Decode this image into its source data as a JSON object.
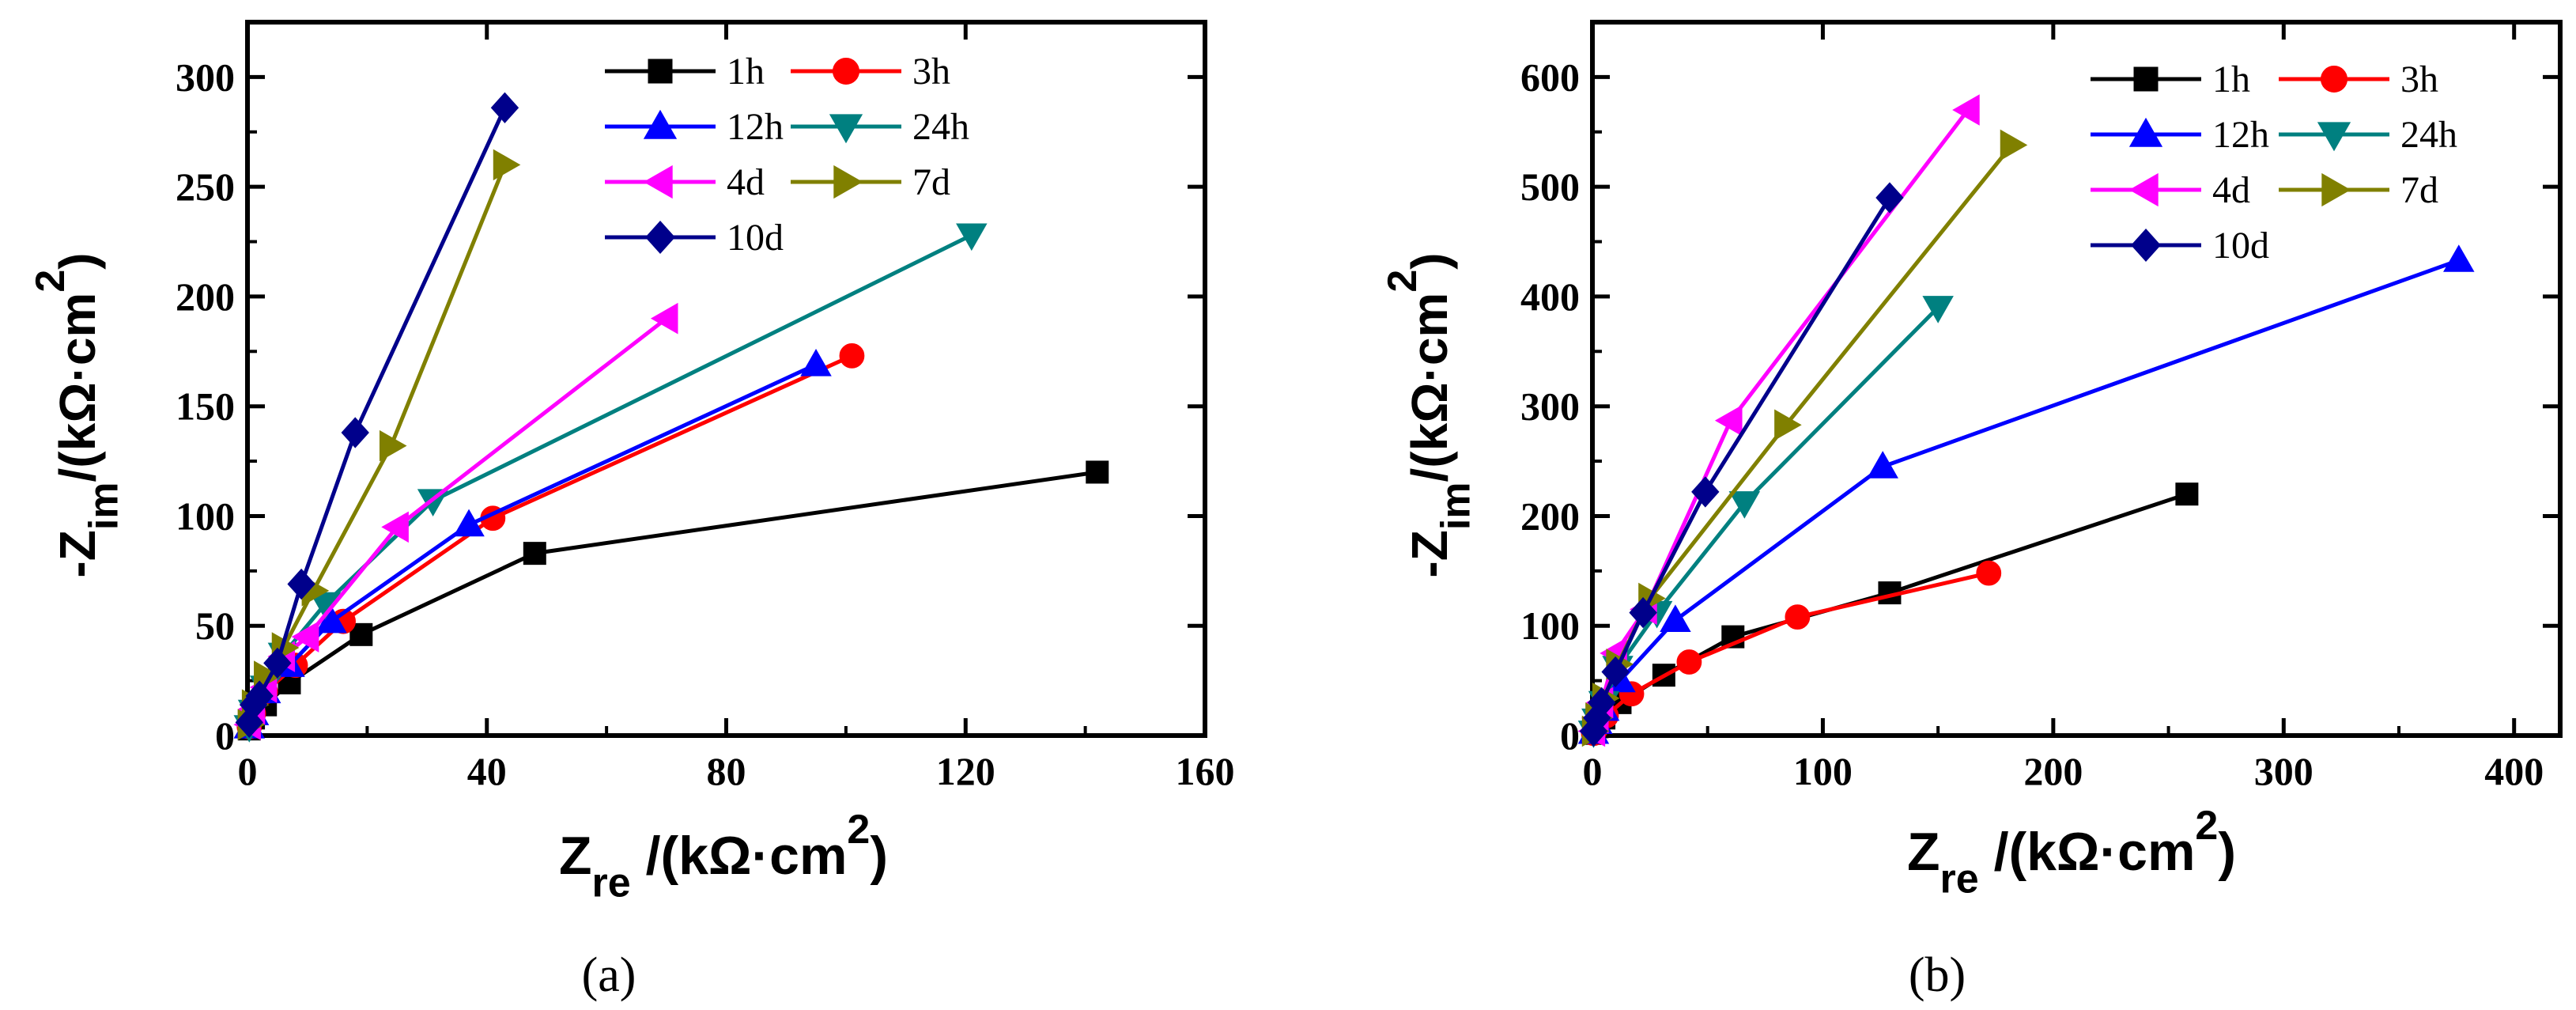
{
  "chart_data": [
    {
      "type": "line",
      "panel_label": "(a)",
      "xlabel": {
        "main": "Z",
        "sub": "re",
        "rest": " /(kΩ",
        "dot": "·",
        "rest2": "cm",
        "sup": "2",
        "close": ")"
      },
      "ylabel": {
        "main": "-Z",
        "sub": "im",
        "rest": "/(kΩ",
        "dot": "·",
        "rest2": "cm",
        "sup": "2",
        "close": ")"
      },
      "xlim": [
        0,
        160
      ],
      "ylim": [
        0,
        325
      ],
      "xticks": [
        0,
        40,
        80,
        120,
        160
      ],
      "yticks": [
        0,
        50,
        100,
        150,
        200,
        250,
        300
      ],
      "series": [
        {
          "name": "1h",
          "color": "#000000",
          "marker": "square",
          "x": [
            0.3,
            1,
            3,
            7,
            19,
            48,
            142
          ],
          "y": [
            3,
            8,
            14,
            24,
            46,
            83,
            120
          ]
        },
        {
          "name": "3h",
          "color": "#ff0000",
          "marker": "circle",
          "x": [
            0.3,
            1,
            3,
            8,
            16,
            41,
            101
          ],
          "y": [
            4,
            10,
            20,
            32,
            52,
            99,
            173
          ]
        },
        {
          "name": "12h",
          "color": "#0000ff",
          "marker": "triangle-up",
          "x": [
            0.3,
            1,
            3,
            7,
            14,
            37,
            95
          ],
          "y": [
            4,
            10,
            20,
            32,
            52,
            96,
            169
          ]
        },
        {
          "name": "24h",
          "color": "#008080",
          "marker": "triangle-down",
          "x": [
            0.3,
            1,
            3,
            6,
            13,
            31,
            121
          ],
          "y": [
            4,
            11,
            22,
            37,
            60,
            107,
            228
          ]
        },
        {
          "name": "4d",
          "color": "#ff00ff",
          "marker": "triangle-left",
          "x": [
            0.3,
            1,
            3,
            6,
            10,
            25,
            70
          ],
          "y": [
            5,
            12,
            22,
            36,
            45,
            95,
            190
          ]
        },
        {
          "name": "7d",
          "color": "#808000",
          "marker": "triangle-right",
          "x": [
            0.3,
            1,
            3,
            6,
            11,
            24,
            43
          ],
          "y": [
            5,
            14,
            27,
            40,
            66,
            132,
            260
          ]
        },
        {
          "name": "10d",
          "color": "#00008b",
          "marker": "diamond",
          "x": [
            0.3,
            1,
            2,
            5,
            9,
            18,
            43
          ],
          "y": [
            6,
            14,
            18,
            33,
            69,
            138,
            286
          ]
        }
      ]
    },
    {
      "type": "line",
      "panel_label": "(b)",
      "xlabel": {
        "main": "Z",
        "sub": "re",
        "rest": " /(kΩ",
        "dot": "·",
        "rest2": "cm",
        "sup": "2",
        "close": ")"
      },
      "ylabel": {
        "main": "-Z",
        "sub": "im",
        "rest": "/(kΩ",
        "dot": "·",
        "rest2": "cm",
        "sup": "2",
        "close": ")"
      },
      "xlim": [
        0,
        420
      ],
      "ylim": [
        0,
        650
      ],
      "xticks": [
        0,
        100,
        200,
        300,
        400
      ],
      "yticks": [
        0,
        100,
        200,
        300,
        400,
        500,
        600
      ],
      "series": [
        {
          "name": "1h",
          "color": "#000000",
          "marker": "square",
          "x": [
            0.5,
            2,
            5,
            12,
            31,
            61,
            129,
            258
          ],
          "y": [
            2,
            8,
            16,
            30,
            55,
            90,
            130,
            220
          ]
        },
        {
          "name": "3h",
          "color": "#ff0000",
          "marker": "circle",
          "x": [
            0.5,
            2,
            6,
            17,
            42,
            89,
            172
          ],
          "y": [
            2,
            8,
            18,
            38,
            67,
            108,
            148
          ]
        },
        {
          "name": "12h",
          "color": "#0000ff",
          "marker": "triangle-up",
          "x": [
            0.5,
            2,
            5,
            12,
            36,
            126,
            376
          ],
          "y": [
            3,
            12,
            24,
            50,
            105,
            245,
            433
          ]
        },
        {
          "name": "24h",
          "color": "#008080",
          "marker": "triangle-down",
          "x": [
            0.5,
            2,
            5,
            11,
            28,
            66,
            150
          ],
          "y": [
            3,
            14,
            30,
            62,
            112,
            212,
            390
          ]
        },
        {
          "name": "4d",
          "color": "#ff00ff",
          "marker": "triangle-left",
          "x": [
            0.5,
            2,
            4,
            10,
            23,
            60,
            163
          ],
          "y": [
            4,
            16,
            30,
            75,
            115,
            287,
            570
          ]
        },
        {
          "name": "7d",
          "color": "#808000",
          "marker": "triangle-right",
          "x": [
            0.5,
            2,
            5,
            11,
            25,
            84,
            182
          ],
          "y": [
            4,
            16,
            34,
            65,
            125,
            283,
            538
          ]
        },
        {
          "name": "10d",
          "color": "#00008b",
          "marker": "diamond",
          "x": [
            0.5,
            2,
            4,
            10,
            22,
            49,
            129
          ],
          "y": [
            4,
            16,
            30,
            58,
            112,
            222,
            490
          ]
        }
      ]
    }
  ]
}
